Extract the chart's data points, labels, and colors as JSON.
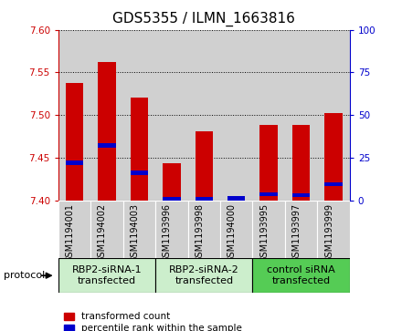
{
  "title": "GDS5355 / ILMN_1663816",
  "samples": [
    "GSM1194001",
    "GSM1194002",
    "GSM1194003",
    "GSM1193996",
    "GSM1193998",
    "GSM1194000",
    "GSM1193995",
    "GSM1193997",
    "GSM1193999"
  ],
  "red_values": [
    7.538,
    7.562,
    7.52,
    7.443,
    7.481,
    7.403,
    7.488,
    7.488,
    7.502
  ],
  "blue_values": [
    7.444,
    7.464,
    7.432,
    7.401,
    7.401,
    7.402,
    7.407,
    7.406,
    7.419
  ],
  "ylim": [
    7.4,
    7.6
  ],
  "y2lim": [
    0,
    100
  ],
  "yticks": [
    7.4,
    7.45,
    7.5,
    7.55,
    7.6
  ],
  "y2ticks": [
    0,
    25,
    50,
    75,
    100
  ],
  "groups": [
    {
      "label": "RBP2-siRNA-1\ntransfected",
      "start": 0,
      "end": 3,
      "color": "#cceecc"
    },
    {
      "label": "RBP2-siRNA-2\ntransfected",
      "start": 3,
      "end": 6,
      "color": "#cceecc"
    },
    {
      "label": "control siRNA\ntransfected",
      "start": 6,
      "end": 9,
      "color": "#55cc55"
    }
  ],
  "bar_bottom": 7.4,
  "bar_width": 0.55,
  "blue_bar_height": 0.005,
  "red_color": "#cc0000",
  "blue_color": "#0000cc",
  "col_bg_color": "#d0d0d0",
  "title_fontsize": 11,
  "tick_fontsize": 7.5,
  "sample_fontsize": 7,
  "group_fontsize": 8,
  "legend_items": [
    "transformed count",
    "percentile rank within the sample"
  ],
  "protocol_label": "protocol"
}
